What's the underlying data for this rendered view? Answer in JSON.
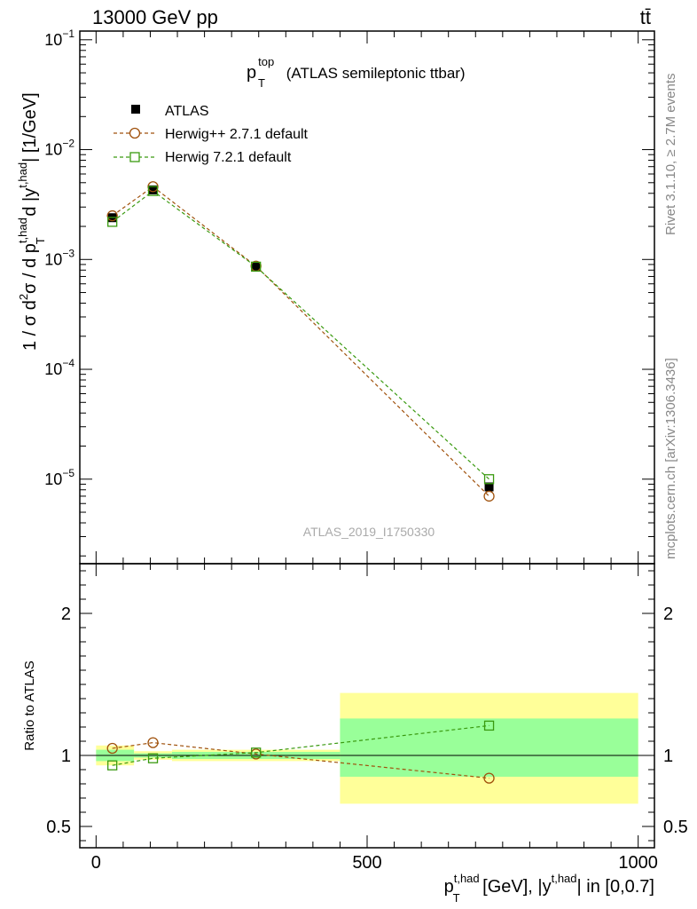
{
  "header": {
    "left": "13000 GeV pp",
    "right": "tt̄"
  },
  "title": {
    "main": "p",
    "sup": "top",
    "sub": "T",
    "rest": " (ATLAS semileptonic ttbar)"
  },
  "watermark": "ATLAS_2019_I1750330",
  "side_labels": {
    "rivet": "Rivet 3.1.10, ≥ 2.7M events",
    "mcplots": "mcplots.cern.ch [arXiv:1306.3436]"
  },
  "legend": [
    {
      "label": "ATLAS",
      "color": "#000000",
      "marker": "filled-square"
    },
    {
      "label": "Herwig++ 2.7.1 default",
      "color": "#a0520d",
      "marker": "open-circle"
    },
    {
      "label": "Herwig 7.2.1 default",
      "color": "#3a9a10",
      "marker": "open-square"
    }
  ],
  "y_main_label": {
    "lead": "1 / σ d",
    "sup2": "2",
    "mid1": "σ / d p",
    "sup_th1": "t,had",
    "sub_T": "T",
    "mid2": " d |y",
    "sup_th2": "t,had",
    "tail": "| [1/GeV]"
  },
  "y_ratio_label": "Ratio to ATLAS",
  "x_label": {
    "p": "p",
    "sup1": "t,had",
    "sub": "T",
    "mid": " [GeV], |y",
    "sup2": "t,had",
    "tail": "| in [0,0.7]"
  },
  "chart_data": [
    {
      "type": "scatter",
      "panel": "main",
      "yscale": "log",
      "ylim": [
        1.7e-06,
        0.12
      ],
      "xlim": [
        -30,
        1030
      ],
      "y_ticks": [
        {
          "value": 1e-05,
          "base": "10",
          "exp": "−5"
        },
        {
          "value": 0.0001,
          "base": "10",
          "exp": "−4"
        },
        {
          "value": 0.001,
          "base": "10",
          "exp": "−3"
        },
        {
          "value": 0.01,
          "base": "10",
          "exp": "−2"
        },
        {
          "value": 0.1,
          "base": "10",
          "exp": "−1"
        }
      ],
      "x": [
        30,
        105,
        295,
        725
      ],
      "series": [
        {
          "name": "ATLAS",
          "values": [
            0.0024,
            0.0043,
            0.00085,
            8.5e-06
          ]
        },
        {
          "name": "Herwig++ 2.7.1 default",
          "values": [
            0.0025,
            0.0046,
            0.00087,
            7e-06
          ]
        },
        {
          "name": "Herwig 7.2.1 default",
          "values": [
            0.0022,
            0.0042,
            0.00086,
            1e-05
          ]
        }
      ]
    },
    {
      "type": "scatter",
      "panel": "ratio",
      "ylim": [
        0.35,
        2.35
      ],
      "xlim": [
        -30,
        1030
      ],
      "y_ticks": [
        {
          "value": 0.5,
          "label": "0.5"
        },
        {
          "value": 1,
          "label": "1"
        },
        {
          "value": 2,
          "label": "2"
        }
      ],
      "x_ticks": [
        {
          "value": 0,
          "label": "0"
        },
        {
          "value": 500,
          "label": "500"
        },
        {
          "value": 1000,
          "label": "1000"
        }
      ],
      "bands": [
        {
          "x0": 0,
          "x1": 70,
          "yellow": [
            0.93,
            1.07
          ],
          "green": [
            0.96,
            1.04
          ]
        },
        {
          "x0": 70,
          "x1": 140,
          "yellow": [
            0.97,
            1.03
          ],
          "green": [
            0.985,
            1.015
          ]
        },
        {
          "x0": 140,
          "x1": 450,
          "yellow": [
            0.96,
            1.04
          ],
          "green": [
            0.975,
            1.025
          ]
        },
        {
          "x0": 450,
          "x1": 1000,
          "yellow": [
            0.66,
            1.44
          ],
          "green": [
            0.85,
            1.26
          ]
        }
      ],
      "x": [
        30,
        105,
        295,
        725
      ],
      "series": [
        {
          "name": "Herwig++ 2.7.1 default",
          "values": [
            1.05,
            1.09,
            1.01,
            0.84
          ]
        },
        {
          "name": "Herwig 7.2.1 default",
          "values": [
            0.93,
            0.98,
            1.02,
            1.21
          ]
        }
      ]
    }
  ]
}
